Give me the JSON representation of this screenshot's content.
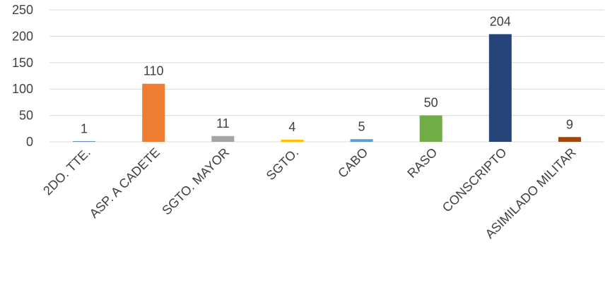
{
  "chart_data": {
    "type": "bar",
    "categories": [
      "2DO. TTE.",
      "ASP. A CADETE",
      "SGTO. MAYOR",
      "SGTO.",
      "CABO",
      "RASO",
      "CONSCRIPTO",
      "ASIMILADO MILITAR"
    ],
    "values": [
      1,
      110,
      11,
      4,
      5,
      50,
      204,
      9
    ],
    "colors": [
      "#4472c4",
      "#ed7d31",
      "#a5a5a5",
      "#ffc000",
      "#5b9bd5",
      "#70ad47",
      "#264478",
      "#9e480e"
    ],
    "ylim": [
      0,
      250
    ],
    "yticks": [
      0,
      50,
      100,
      150,
      200,
      250
    ],
    "grid": true,
    "legend": "none",
    "data_labels": true
  }
}
